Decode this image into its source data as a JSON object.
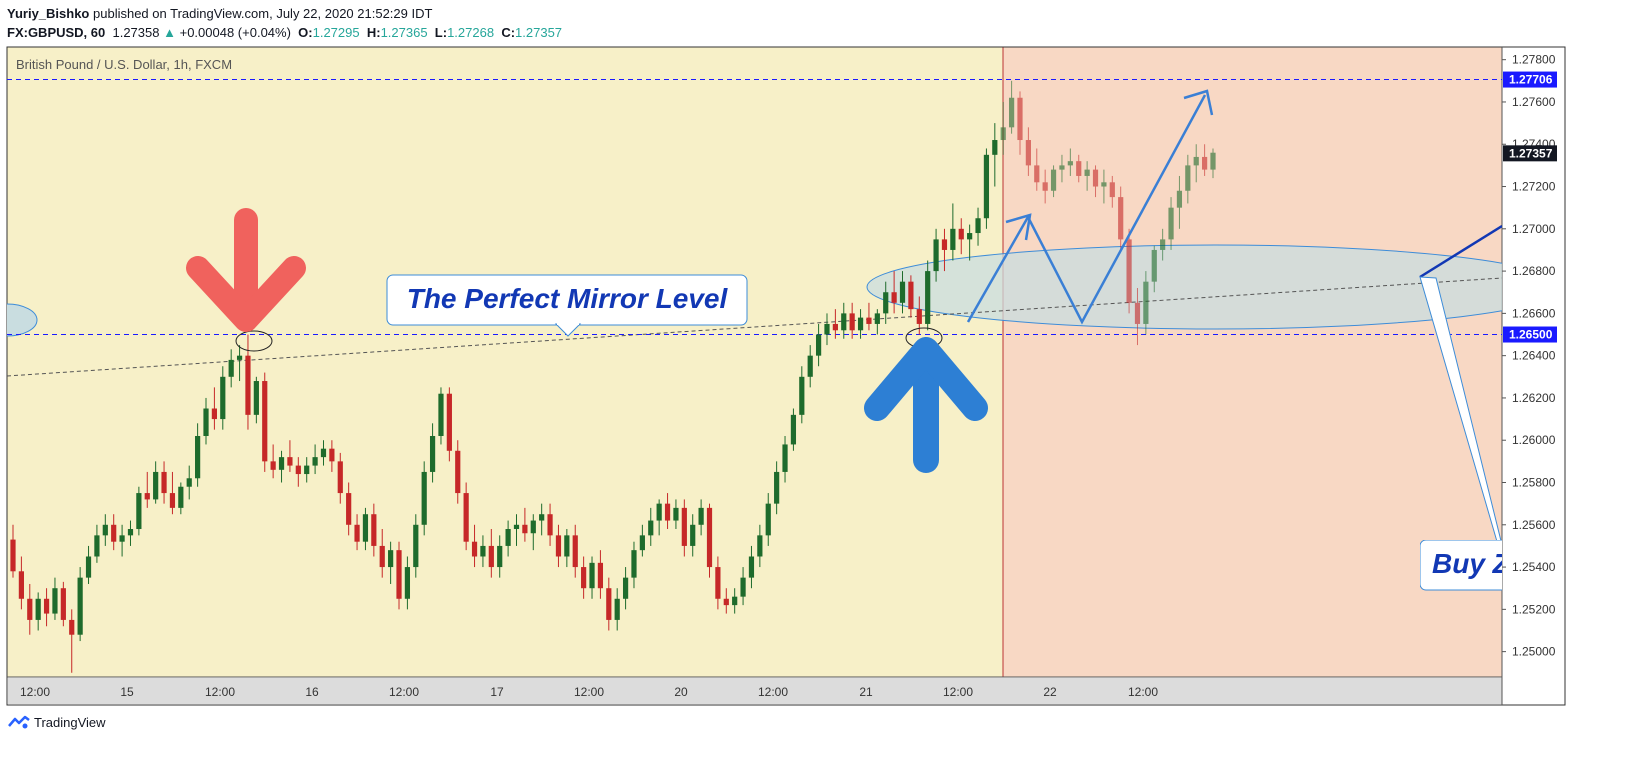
{
  "header": {
    "author": "Yuriy_Bishko",
    "published": "published on TradingView.com, July 22, 2020 21:52:29 IDT",
    "symbol": "FX:GBPUSD, 60",
    "last": "1.27358",
    "change_arrow": "▲",
    "change": "+0.00048 (+0.04%)",
    "o_label": "O:",
    "o": "1.27295",
    "h_label": "H:",
    "h": "1.27365",
    "l_label": "L:",
    "l": "1.27268",
    "c_label": "C:",
    "c": "1.27357"
  },
  "chart_title": "British Pound / U.S. Dollar, 1h, FXCM",
  "annotations": {
    "mirror_label": "The Perfect Mirror Level",
    "buy_label": "Buy Z"
  },
  "footer": {
    "brand": "TradingView",
    "logo_icon": "tradingview-logo-icon"
  },
  "colors": {
    "bg_left": "#f7f0c8",
    "bg_right": "#f8d8c4",
    "up": "#1e6b2c",
    "down": "#c62828",
    "level": "#1a1aff",
    "red_arrow": "#f0625d",
    "blue_arrow": "#2d7fd4",
    "ellipse_fill": "#c9dde0",
    "label_text": "#1238b4"
  },
  "chart_data": {
    "type": "candlestick",
    "symbol": "GBPUSD",
    "timeframe": "1h",
    "ylim": [
      1.2488,
      1.2786
    ],
    "y_ticks": [
      "1.27800",
      "1.27600",
      "1.27400",
      "1.27200",
      "1.27000",
      "1.26800",
      "1.26600",
      "1.26400",
      "1.26200",
      "1.26000",
      "1.25800",
      "1.25600",
      "1.25400",
      "1.25200",
      "1.25000"
    ],
    "x_ticks": [
      "12:00",
      "15",
      "12:00",
      "16",
      "12:00",
      "17",
      "12:00",
      "20",
      "12:00",
      "21",
      "12:00",
      "22",
      "12:00"
    ],
    "price_labels": [
      {
        "value": 1.27706,
        "text": "1.27706",
        "style": "level"
      },
      {
        "value": 1.27357,
        "text": "1.27357",
        "style": "last"
      },
      {
        "value": 1.265,
        "text": "1.26500",
        "style": "level"
      }
    ],
    "horizontal_levels": [
      1.27706,
      1.265
    ],
    "candles": [
      [
        1.2553,
        1.256,
        1.2535,
        1.2538
      ],
      [
        1.2538,
        1.2545,
        1.252,
        1.2525
      ],
      [
        1.2525,
        1.2532,
        1.2508,
        1.2515
      ],
      [
        1.2515,
        1.2528,
        1.251,
        1.2525
      ],
      [
        1.2525,
        1.253,
        1.2512,
        1.2518
      ],
      [
        1.2518,
        1.2535,
        1.2515,
        1.253
      ],
      [
        1.253,
        1.2533,
        1.2512,
        1.2515
      ],
      [
        1.2515,
        1.252,
        1.249,
        1.2508
      ],
      [
        1.2508,
        1.254,
        1.2505,
        1.2535
      ],
      [
        1.2535,
        1.255,
        1.2532,
        1.2545
      ],
      [
        1.2545,
        1.256,
        1.2542,
        1.2555
      ],
      [
        1.2555,
        1.2565,
        1.255,
        1.256
      ],
      [
        1.256,
        1.2565,
        1.2548,
        1.2552
      ],
      [
        1.2552,
        1.256,
        1.2545,
        1.2555
      ],
      [
        1.2555,
        1.2562,
        1.255,
        1.2558
      ],
      [
        1.2558,
        1.2578,
        1.2555,
        1.2575
      ],
      [
        1.2575,
        1.2585,
        1.2568,
        1.2572
      ],
      [
        1.2572,
        1.259,
        1.257,
        1.2585
      ],
      [
        1.2585,
        1.259,
        1.257,
        1.2575
      ],
      [
        1.2575,
        1.2585,
        1.2565,
        1.2568
      ],
      [
        1.2568,
        1.258,
        1.2565,
        1.2578
      ],
      [
        1.2578,
        1.2588,
        1.2572,
        1.2582
      ],
      [
        1.2582,
        1.2608,
        1.2578,
        1.2602
      ],
      [
        1.2602,
        1.262,
        1.2598,
        1.2615
      ],
      [
        1.2615,
        1.2625,
        1.2605,
        1.261
      ],
      [
        1.261,
        1.2635,
        1.2605,
        1.263
      ],
      [
        1.263,
        1.2643,
        1.2625,
        1.2638
      ],
      [
        1.2638,
        1.2645,
        1.2628,
        1.264
      ],
      [
        1.264,
        1.265,
        1.2605,
        1.2612
      ],
      [
        1.2612,
        1.263,
        1.2608,
        1.2628
      ],
      [
        1.2628,
        1.2632,
        1.2585,
        1.259
      ],
      [
        1.259,
        1.2598,
        1.2582,
        1.2586
      ],
      [
        1.2586,
        1.2595,
        1.258,
        1.2592
      ],
      [
        1.2592,
        1.26,
        1.2585,
        1.2588
      ],
      [
        1.2588,
        1.2592,
        1.2578,
        1.2584
      ],
      [
        1.2584,
        1.2592,
        1.258,
        1.2588
      ],
      [
        1.2588,
        1.2598,
        1.2584,
        1.2592
      ],
      [
        1.2592,
        1.26,
        1.2588,
        1.2596
      ],
      [
        1.2596,
        1.26,
        1.2585,
        1.259
      ],
      [
        1.259,
        1.2594,
        1.257,
        1.2575
      ],
      [
        1.2575,
        1.258,
        1.2555,
        1.256
      ],
      [
        1.256,
        1.2565,
        1.2548,
        1.2552
      ],
      [
        1.2552,
        1.2568,
        1.2548,
        1.2565
      ],
      [
        1.2565,
        1.257,
        1.2545,
        1.255
      ],
      [
        1.255,
        1.2558,
        1.2535,
        1.254
      ],
      [
        1.254,
        1.2552,
        1.2532,
        1.2548
      ],
      [
        1.2548,
        1.2552,
        1.252,
        1.2525
      ],
      [
        1.2525,
        1.2545,
        1.252,
        1.254
      ],
      [
        1.254,
        1.2565,
        1.2535,
        1.256
      ],
      [
        1.256,
        1.259,
        1.2555,
        1.2585
      ],
      [
        1.2585,
        1.2608,
        1.258,
        1.2602
      ],
      [
        1.2602,
        1.2625,
        1.2598,
        1.2622
      ],
      [
        1.2622,
        1.2625,
        1.259,
        1.2595
      ],
      [
        1.2595,
        1.26,
        1.257,
        1.2575
      ],
      [
        1.2575,
        1.258,
        1.2548,
        1.2552
      ],
      [
        1.2552,
        1.256,
        1.254,
        1.2545
      ],
      [
        1.2545,
        1.2555,
        1.254,
        1.255
      ],
      [
        1.255,
        1.2558,
        1.2535,
        1.254
      ],
      [
        1.254,
        1.2555,
        1.2535,
        1.255
      ],
      [
        1.255,
        1.2562,
        1.2545,
        1.2558
      ],
      [
        1.2558,
        1.2565,
        1.255,
        1.256
      ],
      [
        1.256,
        1.2568,
        1.2552,
        1.2556
      ],
      [
        1.2556,
        1.2565,
        1.2548,
        1.2562
      ],
      [
        1.2562,
        1.257,
        1.2555,
        1.2565
      ],
      [
        1.2565,
        1.257,
        1.255,
        1.2555
      ],
      [
        1.2555,
        1.256,
        1.254,
        1.2545
      ],
      [
        1.2545,
        1.2558,
        1.254,
        1.2555
      ],
      [
        1.2555,
        1.256,
        1.2535,
        1.254
      ],
      [
        1.254,
        1.2545,
        1.2525,
        1.253
      ],
      [
        1.253,
        1.2545,
        1.2525,
        1.2542
      ],
      [
        1.2542,
        1.2548,
        1.2525,
        1.253
      ],
      [
        1.253,
        1.2535,
        1.251,
        1.2515
      ],
      [
        1.2515,
        1.253,
        1.251,
        1.2525
      ],
      [
        1.2525,
        1.254,
        1.252,
        1.2535
      ],
      [
        1.2535,
        1.2552,
        1.253,
        1.2548
      ],
      [
        1.2548,
        1.256,
        1.2545,
        1.2555
      ],
      [
        1.2555,
        1.2568,
        1.255,
        1.2562
      ],
      [
        1.2562,
        1.2572,
        1.2555,
        1.257
      ],
      [
        1.257,
        1.2575,
        1.2558,
        1.2562
      ],
      [
        1.2562,
        1.2572,
        1.2558,
        1.2568
      ],
      [
        1.2568,
        1.2572,
        1.2545,
        1.255
      ],
      [
        1.255,
        1.2565,
        1.2545,
        1.256
      ],
      [
        1.256,
        1.2572,
        1.2555,
        1.2568
      ],
      [
        1.2568,
        1.257,
        1.2535,
        1.254
      ],
      [
        1.254,
        1.2545,
        1.252,
        1.2525
      ],
      [
        1.2525,
        1.253,
        1.2518,
        1.2522
      ],
      [
        1.2522,
        1.253,
        1.2518,
        1.2526
      ],
      [
        1.2526,
        1.254,
        1.2522,
        1.2535
      ],
      [
        1.2535,
        1.255,
        1.253,
        1.2545
      ],
      [
        1.2545,
        1.256,
        1.254,
        1.2555
      ],
      [
        1.2555,
        1.2575,
        1.255,
        1.257
      ],
      [
        1.257,
        1.259,
        1.2565,
        1.2585
      ],
      [
        1.2585,
        1.2602,
        1.258,
        1.2598
      ],
      [
        1.2598,
        1.2615,
        1.2595,
        1.2612
      ],
      [
        1.2612,
        1.2635,
        1.2608,
        1.263
      ],
      [
        1.263,
        1.2645,
        1.2625,
        1.264
      ],
      [
        1.264,
        1.2655,
        1.2635,
        1.265
      ],
      [
        1.265,
        1.266,
        1.2645,
        1.2655
      ],
      [
        1.2655,
        1.2662,
        1.2648,
        1.2652
      ],
      [
        1.2652,
        1.2665,
        1.2648,
        1.266
      ],
      [
        1.266,
        1.2665,
        1.2648,
        1.2652
      ],
      [
        1.2652,
        1.2662,
        1.2648,
        1.2658
      ],
      [
        1.2658,
        1.2665,
        1.2652,
        1.2655
      ],
      [
        1.2655,
        1.2662,
        1.265,
        1.266
      ],
      [
        1.266,
        1.2675,
        1.2655,
        1.267
      ],
      [
        1.267,
        1.268,
        1.266,
        1.2665
      ],
      [
        1.2665,
        1.268,
        1.266,
        1.2675
      ],
      [
        1.2675,
        1.2678,
        1.2658,
        1.2662
      ],
      [
        1.2662,
        1.2668,
        1.265,
        1.2655
      ],
      [
        1.2655,
        1.2685,
        1.2652,
        1.268
      ],
      [
        1.268,
        1.27,
        1.2675,
        1.2695
      ],
      [
        1.2695,
        1.27,
        1.268,
        1.269
      ],
      [
        1.269,
        1.2712,
        1.2685,
        1.27
      ],
      [
        1.27,
        1.2705,
        1.2688,
        1.2695
      ],
      [
        1.2695,
        1.2702,
        1.2685,
        1.2698
      ],
      [
        1.2698,
        1.271,
        1.2692,
        1.2705
      ],
      [
        1.2705,
        1.2738,
        1.27,
        1.2735
      ],
      [
        1.2735,
        1.275,
        1.272,
        1.2742
      ],
      [
        1.2742,
        1.276,
        1.2735,
        1.2748
      ],
      [
        1.2748,
        1.277,
        1.2745,
        1.2762
      ],
      [
        1.2762,
        1.2765,
        1.2735,
        1.2742
      ],
      [
        1.2742,
        1.2748,
        1.2725,
        1.273
      ],
      [
        1.273,
        1.2738,
        1.2718,
        1.2722
      ],
      [
        1.2722,
        1.2728,
        1.2712,
        1.2718
      ],
      [
        1.2718,
        1.273,
        1.2715,
        1.2728
      ],
      [
        1.2728,
        1.2735,
        1.2722,
        1.273
      ],
      [
        1.273,
        1.2738,
        1.2725,
        1.2732
      ],
      [
        1.2732,
        1.2735,
        1.2722,
        1.2725
      ],
      [
        1.2725,
        1.2732,
        1.2718,
        1.2728
      ],
      [
        1.2728,
        1.273,
        1.2715,
        1.272
      ],
      [
        1.272,
        1.2728,
        1.2712,
        1.2722
      ],
      [
        1.2722,
        1.2725,
        1.271,
        1.2715
      ],
      [
        1.2715,
        1.272,
        1.269,
        1.2695
      ],
      [
        1.2695,
        1.27,
        1.266,
        1.2665
      ],
      [
        1.2665,
        1.2672,
        1.2645,
        1.2655
      ],
      [
        1.2655,
        1.268,
        1.265,
        1.2675
      ],
      [
        1.2675,
        1.2692,
        1.267,
        1.269
      ],
      [
        1.269,
        1.27,
        1.2685,
        1.2695
      ],
      [
        1.2695,
        1.2715,
        1.269,
        1.271
      ],
      [
        1.271,
        1.2725,
        1.27,
        1.2718
      ],
      [
        1.2718,
        1.2735,
        1.2712,
        1.273
      ],
      [
        1.273,
        1.274,
        1.2722,
        1.2734
      ],
      [
        1.2734,
        1.274,
        1.2725,
        1.2728
      ],
      [
        1.2728,
        1.2738,
        1.2724,
        1.2736
      ]
    ]
  }
}
